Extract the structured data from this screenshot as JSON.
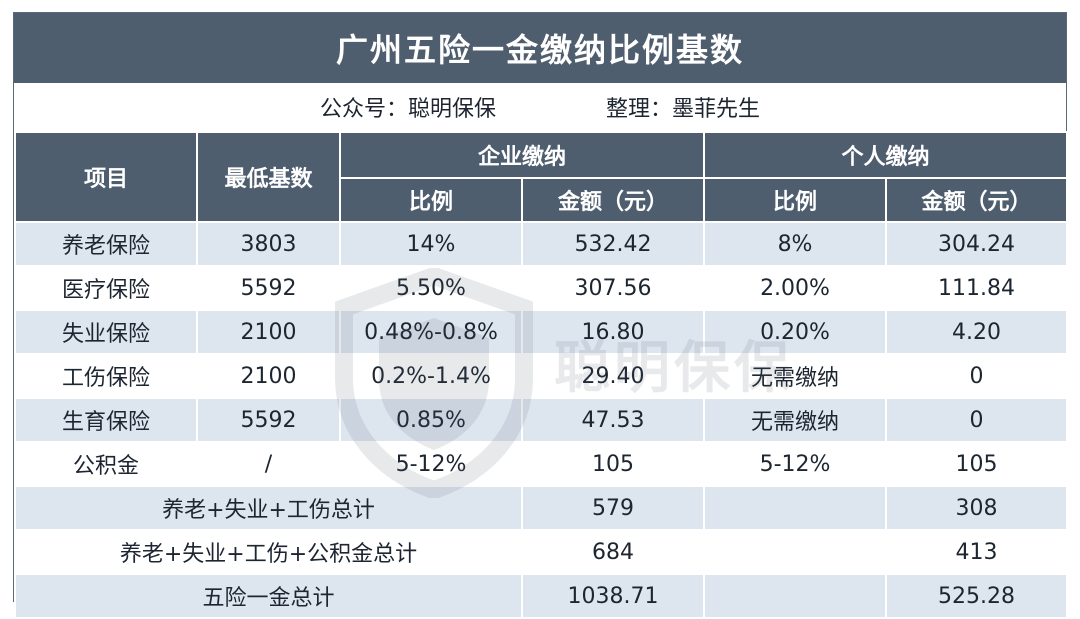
{
  "title": "广州五险一金缴纳比例基数",
  "subtitle": {
    "source": "公众号：聪明保保",
    "editor": "整理：墨菲先生"
  },
  "header": {
    "item": "项目",
    "min_base": "最低基数",
    "company": "企业缴纳",
    "personal": "个人缴纳",
    "ratio": "比例",
    "amount": "金额（元）"
  },
  "rows": [
    {
      "item": "养老保险",
      "base": "3803",
      "c_ratio": "14%",
      "c_amount": "532.42",
      "p_ratio": "8%",
      "p_amount": "304.24"
    },
    {
      "item": "医疗保险",
      "base": "5592",
      "c_ratio": "5.50%",
      "c_amount": "307.56",
      "p_ratio": "2.00%",
      "p_amount": "111.84"
    },
    {
      "item": "失业保险",
      "base": "2100",
      "c_ratio": "0.48%-0.8%",
      "c_amount": "16.80",
      "p_ratio": "0.20%",
      "p_amount": "4.20"
    },
    {
      "item": "工伤保险",
      "base": "2100",
      "c_ratio": "0.2%-1.4%",
      "c_amount": "29.40",
      "p_ratio": "无需缴纳",
      "p_amount": "0"
    },
    {
      "item": "生育保险",
      "base": "5592",
      "c_ratio": "0.85%",
      "c_amount": "47.53",
      "p_ratio": "无需缴纳",
      "p_amount": "0"
    },
    {
      "item": "公积金",
      "base": "/",
      "c_ratio": "5-12%",
      "c_amount": "105",
      "p_ratio": "5-12%",
      "p_amount": "105"
    }
  ],
  "totals": [
    {
      "label": "养老+失业+工伤总计",
      "c_amount": "579",
      "p_amount": "308"
    },
    {
      "label": "养老+失业+工伤+公积金总计",
      "c_amount": "684",
      "p_amount": "413"
    },
    {
      "label": "五险一金总计",
      "c_amount": "1038.71",
      "p_amount": "525.28"
    }
  ],
  "watermark": {
    "text": "聪明保保",
    "icon": "shield-icon"
  },
  "colors": {
    "header_bg": "#4f5e6f",
    "stripe": "#dde5ef"
  }
}
